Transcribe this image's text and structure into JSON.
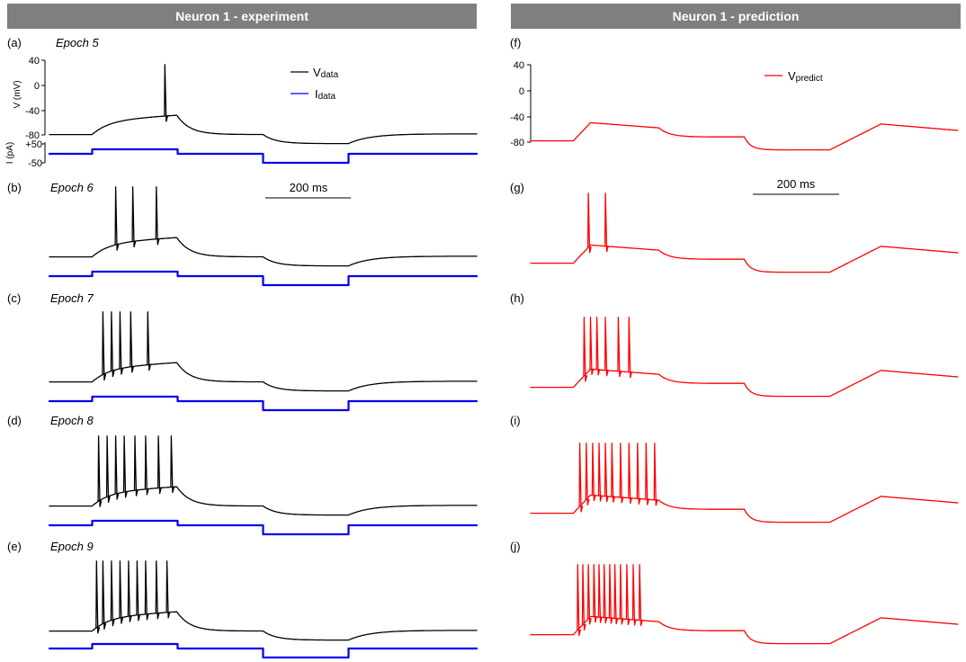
{
  "headers": {
    "left": "Neuron 1 - experiment",
    "right": "Neuron 1 - prediction"
  },
  "colors": {
    "banner": "#7f7f7f",
    "v_data": "#000000",
    "i_data": "#0000ee",
    "v_predict": "#ff0000"
  },
  "axes": {
    "v_label": "V (mV)",
    "i_label": "I (pA)",
    "v_ticks": [
      "40",
      "0",
      "-40",
      "-80"
    ],
    "i_ticks": [
      "+50",
      "-50"
    ],
    "v_tick_values": [
      40,
      0,
      -40,
      -80
    ],
    "i_tick_values": [
      50,
      -50
    ]
  },
  "legend": {
    "v_data_main": "V",
    "v_data_sub": "data",
    "i_data_main": "I",
    "i_data_sub": "data",
    "v_predict_main": "V",
    "v_predict_sub": "predict"
  },
  "scale_bar": {
    "label": "200 ms",
    "duration_ms": 200
  },
  "chart_data": [
    {
      "type": "line",
      "panel": "(a)",
      "epoch": "Epoch 5",
      "side": "experiment",
      "spikes_ms": [
        270
      ],
      "current_steps_pA": [
        -10,
        30,
        -10,
        -50,
        -10
      ],
      "step_ms": [
        [
          0,
          100
        ],
        [
          100,
          300
        ],
        [
          300,
          500
        ],
        [
          500,
          700
        ],
        [
          700,
          1000
        ]
      ]
    },
    {
      "type": "line",
      "panel": "(b)",
      "epoch": "Epoch 6",
      "side": "experiment",
      "spikes_ms": [
        155,
        195,
        250
      ]
    },
    {
      "type": "line",
      "panel": "(c)",
      "epoch": "Epoch 7",
      "side": "experiment",
      "spikes_ms": [
        125,
        145,
        165,
        190,
        230
      ]
    },
    {
      "type": "line",
      "panel": "(d)",
      "epoch": "Epoch 8",
      "side": "experiment",
      "spikes_ms": [
        115,
        135,
        155,
        175,
        200,
        225,
        255,
        285
      ]
    },
    {
      "type": "line",
      "panel": "(e)",
      "epoch": "Epoch 9",
      "side": "experiment",
      "spikes_ms": [
        110,
        125,
        145,
        165,
        185,
        205,
        225,
        250,
        275
      ]
    },
    {
      "type": "line",
      "panel": "(f)",
      "side": "prediction",
      "spikes_ms": []
    },
    {
      "type": "line",
      "panel": "(g)",
      "side": "prediction",
      "spikes_ms": [
        135,
        175
      ]
    },
    {
      "type": "line",
      "panel": "(h)",
      "side": "prediction",
      "spikes_ms": [
        125,
        140,
        155,
        175,
        205,
        230
      ]
    },
    {
      "type": "line",
      "panel": "(i)",
      "side": "prediction",
      "spikes_ms": [
        115,
        130,
        145,
        160,
        175,
        190,
        210,
        230,
        250,
        270,
        290
      ]
    },
    {
      "type": "line",
      "panel": "(j)",
      "side": "prediction",
      "spikes_ms": [
        110,
        122,
        135,
        148,
        160,
        172,
        185,
        197,
        210,
        225,
        240,
        255
      ]
    }
  ]
}
